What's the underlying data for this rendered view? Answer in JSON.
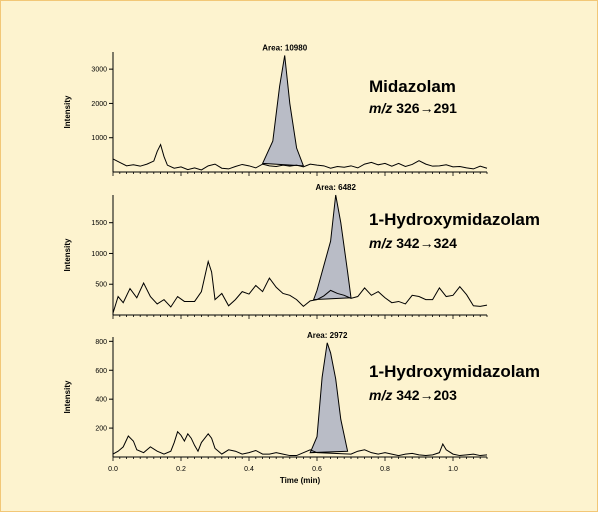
{
  "chart_data": [
    {
      "type": "line",
      "compound": "Midazolam",
      "mz_label": "m/z",
      "transition": "326→291",
      "area_label": "Area: 10980",
      "ylabel": "Intensity",
      "yticks": [
        1000,
        2000,
        3000
      ],
      "ylim": [
        0,
        3500
      ],
      "xlim": [
        0,
        1.1
      ],
      "baseline": [
        [
          0.0,
          380
        ],
        [
          0.02,
          280
        ],
        [
          0.04,
          180
        ],
        [
          0.06,
          210
        ],
        [
          0.08,
          170
        ],
        [
          0.1,
          230
        ],
        [
          0.12,
          320
        ],
        [
          0.13,
          600
        ],
        [
          0.14,
          800
        ],
        [
          0.15,
          450
        ],
        [
          0.16,
          200
        ],
        [
          0.18,
          110
        ],
        [
          0.2,
          150
        ],
        [
          0.22,
          70
        ],
        [
          0.24,
          120
        ],
        [
          0.26,
          60
        ],
        [
          0.28,
          180
        ],
        [
          0.3,
          230
        ],
        [
          0.32,
          110
        ],
        [
          0.34,
          90
        ],
        [
          0.36,
          160
        ],
        [
          0.38,
          220
        ],
        [
          0.4,
          180
        ],
        [
          0.42,
          120
        ],
        [
          0.44,
          230
        ],
        [
          0.46,
          180
        ],
        [
          0.48,
          160
        ],
        [
          0.5,
          200
        ],
        [
          0.52,
          170
        ],
        [
          0.54,
          200
        ],
        [
          0.56,
          150
        ],
        [
          0.58,
          230
        ],
        [
          0.6,
          200
        ],
        [
          0.62,
          180
        ],
        [
          0.64,
          110
        ],
        [
          0.66,
          160
        ],
        [
          0.68,
          140
        ],
        [
          0.7,
          180
        ],
        [
          0.72,
          120
        ],
        [
          0.74,
          230
        ],
        [
          0.76,
          280
        ],
        [
          0.78,
          210
        ],
        [
          0.8,
          250
        ],
        [
          0.82,
          170
        ],
        [
          0.84,
          250
        ],
        [
          0.86,
          160
        ],
        [
          0.88,
          220
        ],
        [
          0.9,
          330
        ],
        [
          0.92,
          230
        ],
        [
          0.94,
          170
        ],
        [
          0.96,
          180
        ],
        [
          0.98,
          210
        ],
        [
          1.0,
          150
        ],
        [
          1.02,
          160
        ],
        [
          1.04,
          120
        ],
        [
          1.06,
          90
        ],
        [
          1.08,
          170
        ],
        [
          1.1,
          110
        ]
      ],
      "peak": [
        [
          0.44,
          250
        ],
        [
          0.47,
          900
        ],
        [
          0.49,
          2500
        ],
        [
          0.505,
          3400
        ],
        [
          0.52,
          2000
        ],
        [
          0.54,
          700
        ],
        [
          0.56,
          180
        ]
      ]
    },
    {
      "type": "line",
      "compound": "1-Hydroxymidazolam",
      "mz_label": "m/z",
      "transition": "342→324",
      "area_label": "Area: 6482",
      "ylabel": "Intensity",
      "yticks": [
        500,
        1000,
        1500
      ],
      "ylim": [
        0,
        1950
      ],
      "xlim": [
        0,
        1.1
      ],
      "baseline": [
        [
          0.0,
          30
        ],
        [
          0.015,
          300
        ],
        [
          0.03,
          200
        ],
        [
          0.05,
          430
        ],
        [
          0.07,
          280
        ],
        [
          0.09,
          520
        ],
        [
          0.11,
          300
        ],
        [
          0.13,
          180
        ],
        [
          0.15,
          250
        ],
        [
          0.17,
          130
        ],
        [
          0.19,
          300
        ],
        [
          0.21,
          220
        ],
        [
          0.24,
          220
        ],
        [
          0.26,
          380
        ],
        [
          0.28,
          870
        ],
        [
          0.29,
          700
        ],
        [
          0.3,
          250
        ],
        [
          0.32,
          350
        ],
        [
          0.34,
          150
        ],
        [
          0.36,
          250
        ],
        [
          0.38,
          380
        ],
        [
          0.4,
          340
        ],
        [
          0.42,
          480
        ],
        [
          0.44,
          380
        ],
        [
          0.46,
          600
        ],
        [
          0.48,
          450
        ],
        [
          0.5,
          350
        ],
        [
          0.52,
          320
        ],
        [
          0.54,
          250
        ],
        [
          0.56,
          140
        ],
        [
          0.58,
          230
        ],
        [
          0.6,
          250
        ],
        [
          0.62,
          310
        ],
        [
          0.64,
          400
        ],
        [
          0.66,
          350
        ],
        [
          0.68,
          320
        ],
        [
          0.7,
          270
        ],
        [
          0.72,
          300
        ],
        [
          0.74,
          440
        ],
        [
          0.76,
          320
        ],
        [
          0.78,
          380
        ],
        [
          0.8,
          280
        ],
        [
          0.82,
          200
        ],
        [
          0.84,
          220
        ],
        [
          0.86,
          180
        ],
        [
          0.88,
          320
        ],
        [
          0.9,
          300
        ],
        [
          0.92,
          250
        ],
        [
          0.94,
          250
        ],
        [
          0.96,
          440
        ],
        [
          0.98,
          300
        ],
        [
          1.0,
          320
        ],
        [
          1.02,
          460
        ],
        [
          1.04,
          330
        ],
        [
          1.06,
          150
        ],
        [
          1.08,
          140
        ],
        [
          1.1,
          160
        ]
      ],
      "peak": [
        [
          0.59,
          250
        ],
        [
          0.6,
          400
        ],
        [
          0.62,
          800
        ],
        [
          0.64,
          1200
        ],
        [
          0.655,
          1950
        ],
        [
          0.67,
          1500
        ],
        [
          0.69,
          700
        ],
        [
          0.7,
          280
        ]
      ]
    },
    {
      "type": "line",
      "compound": "1-Hydroxymidazolam",
      "mz_label": "m/z",
      "transition": "342→203",
      "area_label": "Area: 2972",
      "ylabel": "Intensity",
      "yticks": [
        200,
        400,
        600,
        800
      ],
      "ylim": [
        0,
        830
      ],
      "xlim": [
        0,
        1.1
      ],
      "xlabel": "Time (min)",
      "xticks": [
        0.0,
        0.2,
        0.4,
        0.6,
        0.8,
        1.0
      ],
      "xtick_labels": [
        "0.0",
        "0.2",
        "0.4",
        "0.6",
        "0.8",
        "1.0"
      ],
      "baseline": [
        [
          0.0,
          20
        ],
        [
          0.015,
          40
        ],
        [
          0.03,
          70
        ],
        [
          0.045,
          145
        ],
        [
          0.06,
          110
        ],
        [
          0.07,
          50
        ],
        [
          0.09,
          30
        ],
        [
          0.11,
          70
        ],
        [
          0.13,
          40
        ],
        [
          0.15,
          20
        ],
        [
          0.17,
          40
        ],
        [
          0.18,
          100
        ],
        [
          0.19,
          175
        ],
        [
          0.2,
          150
        ],
        [
          0.21,
          110
        ],
        [
          0.22,
          160
        ],
        [
          0.23,
          130
        ],
        [
          0.24,
          80
        ],
        [
          0.25,
          40
        ],
        [
          0.26,
          100
        ],
        [
          0.28,
          160
        ],
        [
          0.29,
          130
        ],
        [
          0.3,
          60
        ],
        [
          0.32,
          20
        ],
        [
          0.34,
          50
        ],
        [
          0.36,
          40
        ],
        [
          0.38,
          20
        ],
        [
          0.4,
          30
        ],
        [
          0.42,
          45
        ],
        [
          0.44,
          20
        ],
        [
          0.46,
          20
        ],
        [
          0.48,
          30
        ],
        [
          0.5,
          20
        ],
        [
          0.52,
          10
        ],
        [
          0.54,
          10
        ],
        [
          0.56,
          30
        ],
        [
          0.58,
          50
        ],
        [
          0.6,
          30
        ],
        [
          0.7,
          20
        ],
        [
          0.72,
          40
        ],
        [
          0.74,
          50
        ],
        [
          0.76,
          30
        ],
        [
          0.78,
          20
        ],
        [
          0.8,
          30
        ],
        [
          0.82,
          20
        ],
        [
          0.84,
          10
        ],
        [
          0.86,
          20
        ],
        [
          0.88,
          25
        ],
        [
          0.9,
          15
        ],
        [
          0.92,
          10
        ],
        [
          0.94,
          15
        ],
        [
          0.96,
          30
        ],
        [
          0.97,
          90
        ],
        [
          0.98,
          50
        ],
        [
          1.0,
          20
        ],
        [
          1.02,
          10
        ],
        [
          1.04,
          15
        ],
        [
          1.06,
          20
        ],
        [
          1.08,
          10
        ],
        [
          1.1,
          15
        ]
      ],
      "peak": [
        [
          0.58,
          30
        ],
        [
          0.6,
          140
        ],
        [
          0.615,
          550
        ],
        [
          0.63,
          790
        ],
        [
          0.64,
          720
        ],
        [
          0.655,
          540
        ],
        [
          0.67,
          260
        ],
        [
          0.69,
          40
        ]
      ]
    }
  ]
}
